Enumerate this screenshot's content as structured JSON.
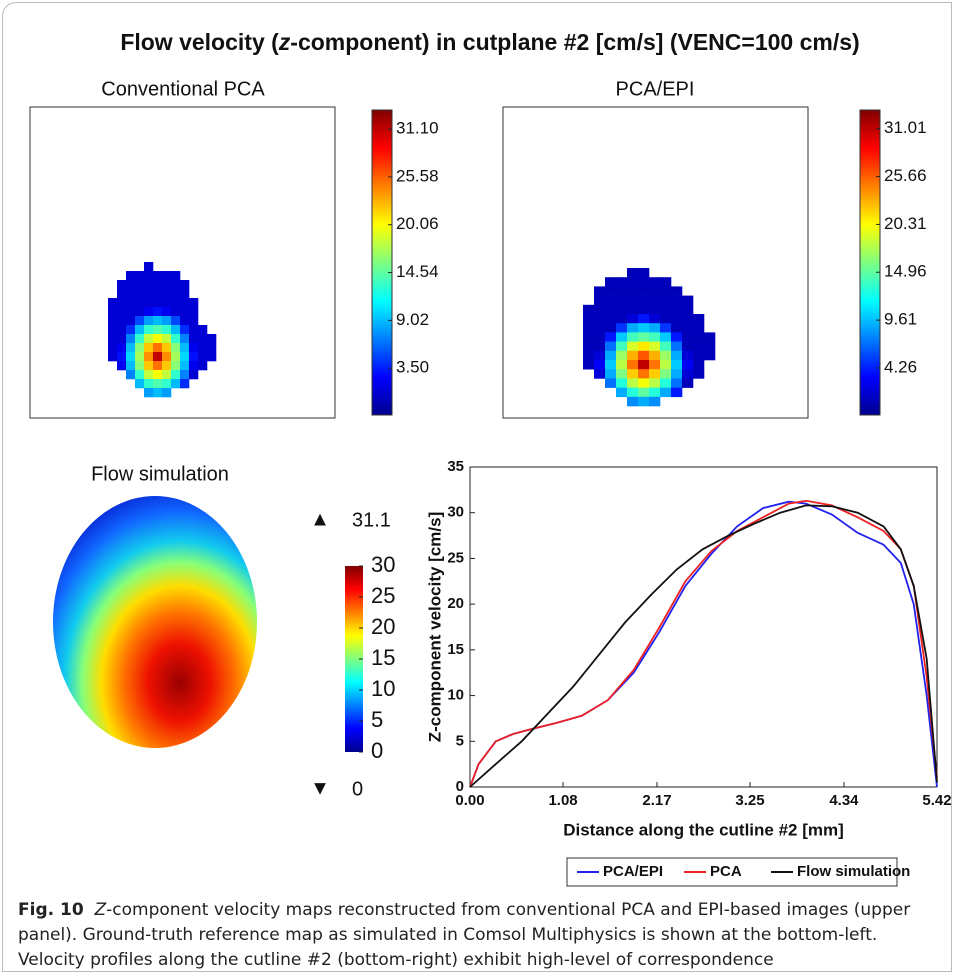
{
  "title": [
    "Flow velocity (",
    "z",
    "-component) in cutplane #2 [cm/s] (VENC=100 cm/s)"
  ],
  "chart_data": [
    {
      "type": "heatmap",
      "title": "Conventional PCA",
      "clim": [
        -1.9,
        33.3
      ],
      "cticks": [
        {
          "value": 31.1,
          "label": "31.10"
        },
        25.58,
        20.06,
        14.54,
        9.02,
        {
          "value": 3.5,
          "label": "3.50"
        }
      ],
      "values": [
        [
          null,
          null,
          null,
          null,
          1,
          null,
          null,
          null,
          null,
          null,
          null,
          null
        ],
        [
          null,
          null,
          1,
          1,
          1,
          1,
          1,
          1,
          null,
          null,
          null,
          null
        ],
        [
          null,
          1,
          1,
          1,
          1,
          1,
          1,
          1,
          1,
          null,
          null,
          null
        ],
        [
          null,
          1,
          1,
          1,
          1,
          1,
          1,
          1,
          1,
          null,
          null,
          null
        ],
        [
          1,
          1,
          1,
          1,
          1,
          1,
          1,
          1,
          1,
          1,
          null,
          null
        ],
        [
          1,
          1,
          1,
          1,
          2,
          3,
          2,
          1,
          1,
          1,
          null,
          null
        ],
        [
          1,
          1,
          1,
          5,
          8,
          9,
          8,
          5,
          1,
          1,
          null,
          null
        ],
        [
          1,
          1,
          4,
          9,
          13,
          14,
          13,
          9,
          4,
          1,
          1,
          null
        ],
        [
          1,
          1,
          7,
          13,
          18,
          20,
          18,
          13,
          7,
          1,
          1,
          1
        ],
        [
          1,
          2,
          9,
          16,
          22,
          25,
          22,
          16,
          9,
          2,
          1,
          1
        ],
        [
          1,
          3,
          10,
          17,
          24,
          31,
          24,
          17,
          10,
          3,
          1,
          1
        ],
        [
          null,
          2,
          9,
          16,
          22,
          25,
          22,
          16,
          9,
          2,
          1,
          null
        ],
        [
          null,
          null,
          7,
          13,
          18,
          20,
          18,
          13,
          7,
          1,
          null,
          null
        ],
        [
          null,
          null,
          null,
          9,
          13,
          14,
          13,
          9,
          4,
          null,
          null,
          null
        ],
        [
          null,
          null,
          null,
          null,
          8,
          9,
          8,
          null,
          null,
          null,
          null,
          null
        ]
      ]
    },
    {
      "type": "heatmap",
      "title": "PCA/EPI",
      "clim": [
        -1.0,
        33.1
      ],
      "cticks": [
        31.01,
        25.66,
        20.31,
        14.96,
        9.61,
        4.26
      ],
      "values": [
        [
          null,
          null,
          null,
          null,
          1,
          1,
          null,
          null,
          null,
          null,
          null,
          null
        ],
        [
          null,
          null,
          1,
          1,
          1,
          1,
          1,
          1,
          null,
          null,
          null,
          null
        ],
        [
          null,
          1,
          1,
          1,
          1,
          1,
          1,
          1,
          1,
          null,
          null,
          null
        ],
        [
          null,
          1,
          1,
          1,
          1,
          1,
          1,
          1,
          1,
          1,
          null,
          null
        ],
        [
          1,
          1,
          1,
          1,
          1,
          1,
          1,
          1,
          1,
          1,
          null,
          null
        ],
        [
          1,
          1,
          1,
          1,
          2,
          4,
          2,
          1,
          1,
          1,
          1,
          null
        ],
        [
          1,
          1,
          1,
          5,
          9,
          10,
          9,
          5,
          1,
          1,
          1,
          null
        ],
        [
          1,
          1,
          4,
          10,
          14,
          15,
          14,
          10,
          4,
          1,
          1,
          1
        ],
        [
          1,
          1,
          7,
          14,
          19,
          21,
          19,
          14,
          7,
          1,
          1,
          1
        ],
        [
          1,
          2,
          9,
          17,
          23,
          26,
          23,
          17,
          9,
          2,
          1,
          1
        ],
        [
          1,
          3,
          10,
          18,
          25,
          31,
          25,
          18,
          10,
          3,
          1,
          null
        ],
        [
          null,
          2,
          9,
          16,
          22,
          25,
          22,
          16,
          9,
          2,
          1,
          null
        ],
        [
          null,
          null,
          7,
          13,
          18,
          20,
          18,
          13,
          7,
          1,
          null,
          null
        ],
        [
          null,
          null,
          null,
          9,
          13,
          15,
          13,
          9,
          4,
          null,
          null,
          null
        ],
        [
          null,
          null,
          null,
          null,
          8,
          9,
          8,
          null,
          null,
          null,
          null,
          null
        ]
      ]
    },
    {
      "type": "colormap",
      "title": "Flow simulation",
      "clim": [
        0,
        30
      ],
      "cticks": [
        0,
        5,
        10,
        15,
        20,
        25,
        30
      ],
      "max": 31.1,
      "min": 0
    },
    {
      "type": "line",
      "ylabel": "Z-component velocity [cm/s]",
      "xlabel": "Distance along the cutline #2 [mm]",
      "xlim": [
        0,
        5.42
      ],
      "ylim": [
        0,
        35
      ],
      "xticks": [
        {
          "value": 0,
          "label": "0.00"
        },
        1.08,
        2.17,
        3.25,
        4.34,
        5.42
      ],
      "yticks": [
        0,
        5,
        10,
        15,
        20,
        25,
        30,
        35
      ],
      "legend": "bottom",
      "series": [
        {
          "name": "PCA/EPI",
          "color": "#2222ee",
          "x": [
            0,
            0.1,
            0.3,
            0.5,
            0.7,
            1.0,
            1.3,
            1.6,
            1.9,
            2.2,
            2.5,
            2.8,
            3.1,
            3.4,
            3.7,
            3.9,
            4.2,
            4.5,
            4.8,
            5.0,
            5.15,
            5.3,
            5.42
          ],
          "values": [
            0,
            2.5,
            5,
            5.8,
            6.3,
            7,
            7.8,
            9.5,
            12.5,
            17,
            22,
            25.5,
            28.5,
            30.5,
            31.2,
            31,
            29.8,
            27.8,
            26.5,
            24.5,
            20,
            10,
            0
          ]
        },
        {
          "name": "PCA",
          "color": "#ee2222",
          "x": [
            0,
            0.1,
            0.3,
            0.5,
            0.7,
            1.0,
            1.3,
            1.6,
            1.9,
            2.2,
            2.5,
            2.8,
            3.1,
            3.4,
            3.7,
            3.9,
            4.2,
            4.5,
            4.8,
            5.0,
            5.15,
            5.3,
            5.42
          ],
          "values": [
            0,
            2.5,
            5,
            5.8,
            6.3,
            7,
            7.8,
            9.5,
            12.8,
            17.5,
            22.5,
            25.8,
            28,
            29.5,
            31,
            31.3,
            30.8,
            29.5,
            28,
            26,
            22,
            12,
            1
          ]
        },
        {
          "name": "Flow simulation",
          "color": "#111111",
          "x": [
            0,
            0.3,
            0.6,
            0.9,
            1.2,
            1.5,
            1.8,
            2.1,
            2.4,
            2.7,
            3.0,
            3.3,
            3.6,
            3.9,
            4.2,
            4.5,
            4.8,
            5.0,
            5.15,
            5.3,
            5.42
          ],
          "values": [
            0,
            2.5,
            5,
            8,
            11,
            14.5,
            18,
            21,
            23.8,
            26,
            27.5,
            28.8,
            30,
            30.8,
            30.7,
            30,
            28.5,
            26,
            22,
            14,
            0.5
          ]
        }
      ]
    }
  ],
  "caption": {
    "label": "Fig. 10",
    "italic": "Z",
    "text": "-component velocity maps reconstructed from conventional PCA and EPI-based images (upper panel). Ground-truth reference map as simulated in Comsol Multiphysics is shown at the bottom-left. Velocity profiles along the cutline #2 (bottom-right) exhibit high-level of correspondence"
  }
}
